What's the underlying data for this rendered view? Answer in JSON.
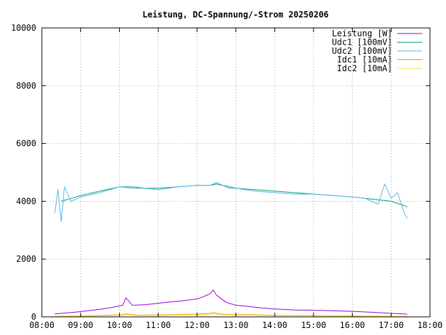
{
  "chart_data": {
    "type": "line",
    "title": "Leistung, DC-Spannung/-Strom 20250206",
    "xlabel": "",
    "ylabel": "",
    "x_ticks": [
      "08:00",
      "09:00",
      "10:00",
      "11:00",
      "12:00",
      "13:00",
      "14:00",
      "15:00",
      "16:00",
      "17:00",
      "18:00"
    ],
    "xlim": [
      "08:00",
      "18:00"
    ],
    "y_ticks": [
      "0",
      "2000",
      "4000",
      "6000",
      "8000",
      "10000"
    ],
    "ylim": [
      0,
      10000
    ],
    "grid": true,
    "legend_position": "top-right",
    "series": [
      {
        "name": "Leistung [W]",
        "color": "#9400d3",
        "x": [
          "08:20",
          "08:40",
          "09:00",
          "09:30",
          "09:50",
          "10:05",
          "10:10",
          "10:20",
          "10:40",
          "11:00",
          "11:20",
          "11:40",
          "12:00",
          "12:10",
          "12:20",
          "12:25",
          "12:30",
          "12:45",
          "13:00",
          "13:20",
          "13:40",
          "14:00",
          "14:30",
          "15:00",
          "15:30",
          "16:00",
          "16:30",
          "17:00",
          "17:20",
          "17:25"
        ],
        "y": [
          100,
          140,
          180,
          260,
          330,
          400,
          660,
          400,
          420,
          470,
          520,
          560,
          620,
          700,
          800,
          930,
          750,
          500,
          400,
          360,
          310,
          270,
          240,
          230,
          210,
          190,
          160,
          120,
          100,
          95
        ]
      },
      {
        "name": "Udc1 [100mV]",
        "color": "#009e73",
        "x": [
          "08:30",
          "08:45",
          "09:00",
          "09:30",
          "10:00",
          "10:20",
          "10:40",
          "11:00",
          "11:30",
          "12:00",
          "12:20",
          "12:30",
          "12:50",
          "13:00",
          "13:30",
          "14:00",
          "14:30",
          "15:00",
          "15:30",
          "16:00",
          "16:20",
          "16:40",
          "17:00",
          "17:20",
          "17:25"
        ],
        "y": [
          4000,
          4100,
          4200,
          4350,
          4500,
          4500,
          4450,
          4450,
          4500,
          4550,
          4550,
          4600,
          4500,
          4450,
          4400,
          4350,
          4300,
          4250,
          4200,
          4150,
          4100,
          4050,
          4000,
          3850,
          3800
        ]
      },
      {
        "name": "Udc2 [100mV]",
        "color": "#56b4e9",
        "x": [
          "08:20",
          "08:25",
          "08:30",
          "08:35",
          "08:45",
          "09:00",
          "09:30",
          "10:00",
          "10:20",
          "10:40",
          "11:00",
          "11:30",
          "12:00",
          "12:20",
          "12:30",
          "12:50",
          "13:00",
          "13:30",
          "14:00",
          "14:30",
          "15:00",
          "15:30",
          "16:00",
          "16:20",
          "16:40",
          "16:50",
          "17:00",
          "17:10",
          "17:20",
          "17:25"
        ],
        "y": [
          3600,
          4400,
          3300,
          4500,
          4000,
          4150,
          4300,
          4500,
          4450,
          4450,
          4400,
          4500,
          4550,
          4550,
          4650,
          4450,
          4450,
          4350,
          4300,
          4250,
          4250,
          4200,
          4150,
          4100,
          3900,
          4600,
          4100,
          4300,
          3600,
          3400
        ]
      },
      {
        "name": "Idc1 [10mA]",
        "color": "#e69f00",
        "x": [
          "08:20",
          "09:00",
          "09:30",
          "10:00",
          "10:10",
          "10:30",
          "11:00",
          "11:30",
          "12:00",
          "12:20",
          "12:25",
          "12:40",
          "13:00",
          "13:30",
          "14:00",
          "15:00",
          "16:00",
          "17:00",
          "17:25"
        ],
        "y": [
          15,
          30,
          50,
          70,
          100,
          60,
          70,
          80,
          95,
          120,
          140,
          90,
          80,
          75,
          55,
          45,
          35,
          20,
          10
        ]
      },
      {
        "name": "Idc2 [10mA]",
        "color": "#f0e442",
        "x": [
          "08:20",
          "09:00",
          "09:30",
          "10:00",
          "10:10",
          "10:30",
          "11:00",
          "11:30",
          "12:00",
          "12:20",
          "12:25",
          "12:40",
          "13:00",
          "13:30",
          "14:00",
          "15:00",
          "16:00",
          "17:00",
          "17:25"
        ],
        "y": [
          10,
          20,
          35,
          50,
          75,
          45,
          50,
          60,
          70,
          90,
          110,
          70,
          60,
          55,
          40,
          35,
          25,
          15,
          5
        ]
      }
    ]
  }
}
